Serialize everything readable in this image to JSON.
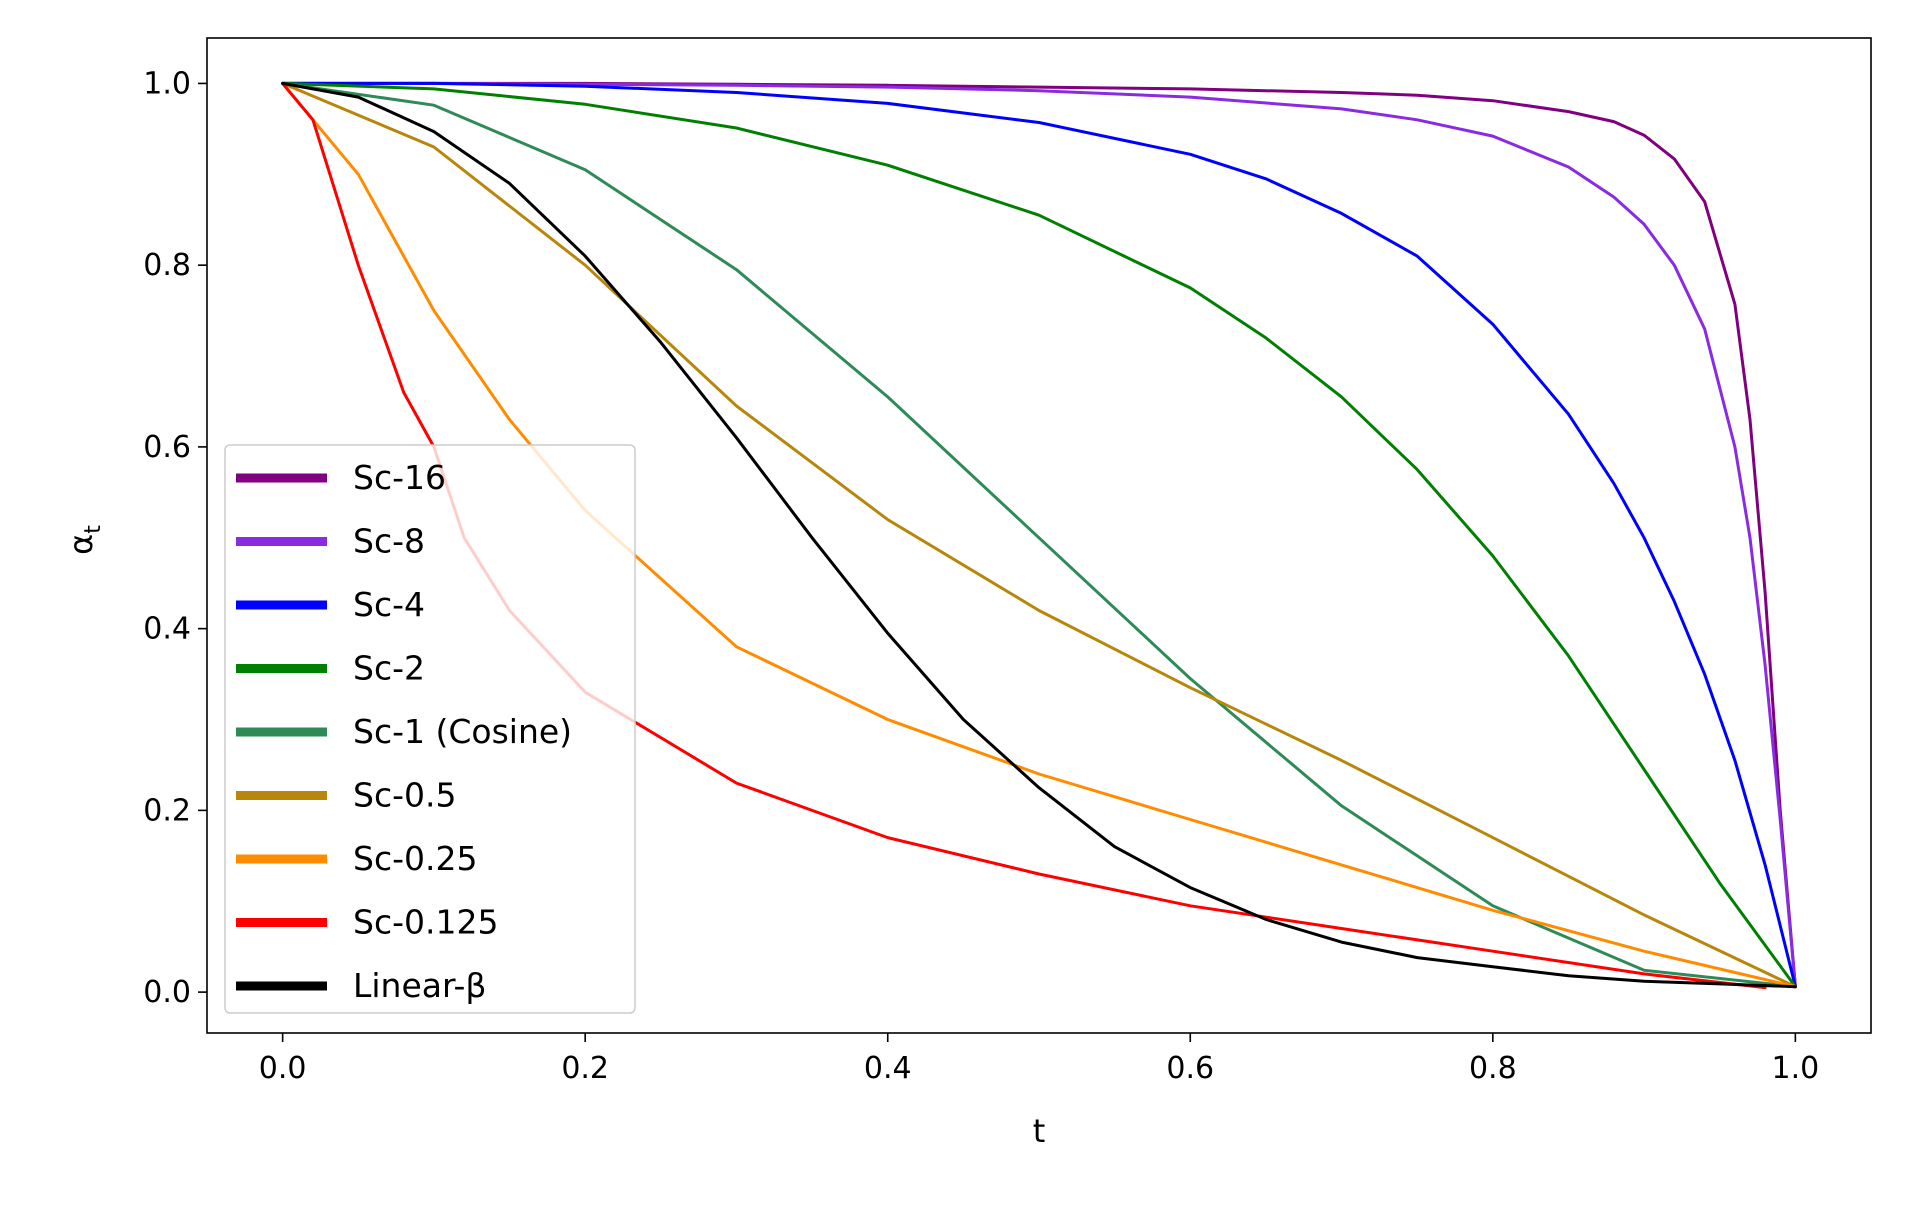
{
  "chart_data": {
    "type": "line",
    "xlabel": "t",
    "ylabel_base": "α",
    "ylabel_sub": "t",
    "xlim": [
      -0.05,
      1.05
    ],
    "ylim": [
      -0.045,
      1.05
    ],
    "xticks": [
      0.0,
      0.2,
      0.4,
      0.6,
      0.8,
      1.0
    ],
    "xtick_labels": [
      "0.0",
      "0.2",
      "0.4",
      "0.6",
      "0.8",
      "1.0"
    ],
    "yticks": [
      0.0,
      0.2,
      0.4,
      0.6,
      0.8,
      1.0
    ],
    "ytick_labels": [
      "0.0",
      "0.2",
      "0.4",
      "0.6",
      "0.8",
      "1.0"
    ],
    "legend_position": "lower-left",
    "grid": false,
    "series": [
      {
        "name": "Sc-16",
        "color": "#800080",
        "x": [
          0,
          0.1,
          0.2,
          0.3,
          0.4,
          0.5,
          0.6,
          0.7,
          0.75,
          0.8,
          0.85,
          0.88,
          0.9,
          0.92,
          0.94,
          0.96,
          0.97,
          0.98,
          0.99,
          1.0
        ],
        "y": [
          1.0,
          1.0,
          1.0,
          0.999,
          0.998,
          0.996,
          0.994,
          0.99,
          0.987,
          0.981,
          0.969,
          0.958,
          0.943,
          0.917,
          0.87,
          0.757,
          0.63,
          0.44,
          0.2,
          0.006
        ]
      },
      {
        "name": "Sc-8",
        "color": "#8a2be2",
        "x": [
          0,
          0.1,
          0.2,
          0.3,
          0.4,
          0.5,
          0.6,
          0.7,
          0.75,
          0.8,
          0.85,
          0.88,
          0.9,
          0.92,
          0.94,
          0.96,
          0.97,
          0.98,
          0.99,
          1.0
        ],
        "y": [
          1.0,
          1.0,
          0.999,
          0.998,
          0.996,
          0.992,
          0.985,
          0.972,
          0.96,
          0.942,
          0.908,
          0.875,
          0.845,
          0.8,
          0.73,
          0.6,
          0.5,
          0.36,
          0.19,
          0.006
        ]
      },
      {
        "name": "Sc-4",
        "color": "#0000ff",
        "x": [
          0,
          0.1,
          0.2,
          0.3,
          0.4,
          0.5,
          0.6,
          0.65,
          0.7,
          0.75,
          0.8,
          0.85,
          0.88,
          0.9,
          0.92,
          0.94,
          0.96,
          0.98,
          1.0
        ],
        "y": [
          1.0,
          1.0,
          0.997,
          0.99,
          0.978,
          0.957,
          0.922,
          0.895,
          0.857,
          0.81,
          0.735,
          0.636,
          0.56,
          0.5,
          0.43,
          0.35,
          0.255,
          0.14,
          0.006
        ]
      },
      {
        "name": "Sc-2",
        "color": "#008000",
        "x": [
          0,
          0.1,
          0.2,
          0.3,
          0.4,
          0.5,
          0.6,
          0.65,
          0.7,
          0.75,
          0.8,
          0.85,
          0.9,
          0.95,
          1.0
        ],
        "y": [
          1.0,
          0.994,
          0.977,
          0.951,
          0.91,
          0.855,
          0.775,
          0.72,
          0.655,
          0.575,
          0.48,
          0.37,
          0.245,
          0.12,
          0.006
        ]
      },
      {
        "name": "Sc-1 (Cosine)",
        "color": "#2e8b57",
        "x": [
          0,
          0.1,
          0.2,
          0.3,
          0.4,
          0.5,
          0.6,
          0.7,
          0.8,
          0.9,
          1.0
        ],
        "y": [
          1.0,
          0.976,
          0.905,
          0.795,
          0.655,
          0.5,
          0.345,
          0.205,
          0.095,
          0.024,
          0.006
        ]
      },
      {
        "name": "Sc-0.5",
        "color": "#b8860b",
        "x": [
          0,
          0.1,
          0.2,
          0.3,
          0.4,
          0.5,
          0.6,
          0.7,
          0.8,
          0.9,
          1.0
        ],
        "y": [
          1.0,
          0.93,
          0.8,
          0.645,
          0.52,
          0.42,
          0.335,
          0.255,
          0.17,
          0.085,
          0.006
        ]
      },
      {
        "name": "Sc-0.25",
        "color": "#ff8c00",
        "x": [
          0,
          0.05,
          0.1,
          0.15,
          0.2,
          0.3,
          0.4,
          0.5,
          0.6,
          0.7,
          0.8,
          0.9,
          1.0
        ],
        "y": [
          1.0,
          0.9,
          0.75,
          0.63,
          0.53,
          0.38,
          0.3,
          0.24,
          0.19,
          0.14,
          0.09,
          0.045,
          0.006
        ]
      },
      {
        "name": "Sc-0.125",
        "color": "#ff0000",
        "x": [
          0,
          0.02,
          0.05,
          0.08,
          0.1,
          0.12,
          0.15,
          0.2,
          0.3,
          0.4,
          0.5,
          0.6,
          0.7,
          0.8,
          0.9,
          0.98
        ],
        "y": [
          1.0,
          0.96,
          0.8,
          0.66,
          0.6,
          0.5,
          0.42,
          0.33,
          0.23,
          0.17,
          0.13,
          0.095,
          0.07,
          0.045,
          0.02,
          0.005
        ]
      },
      {
        "name": "Linear-β",
        "color": "#000000",
        "x": [
          0,
          0.05,
          0.1,
          0.15,
          0.2,
          0.25,
          0.3,
          0.35,
          0.4,
          0.45,
          0.5,
          0.55,
          0.6,
          0.65,
          0.7,
          0.75,
          0.8,
          0.85,
          0.9,
          0.95,
          1.0
        ],
        "y": [
          1.0,
          0.985,
          0.947,
          0.89,
          0.81,
          0.715,
          0.61,
          0.5,
          0.395,
          0.3,
          0.225,
          0.16,
          0.115,
          0.08,
          0.055,
          0.038,
          0.028,
          0.018,
          0.012,
          0.009,
          0.006
        ]
      }
    ]
  }
}
